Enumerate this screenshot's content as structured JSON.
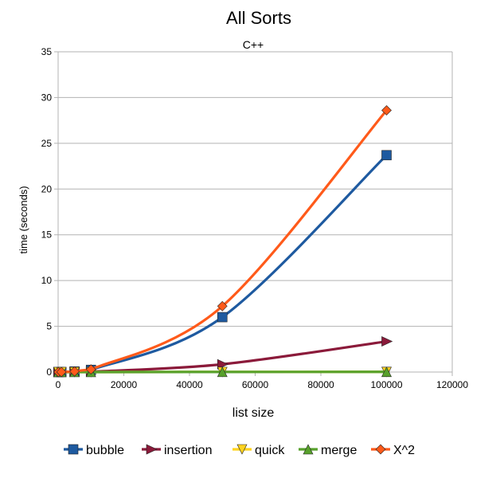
{
  "chart_data": {
    "type": "line",
    "title": "All Sorts",
    "subtitle": "C++",
    "xlabel": "list size",
    "ylabel": "time (seconds)",
    "xlim": [
      0,
      120000
    ],
    "ylim": [
      0,
      35
    ],
    "xticks": [
      0,
      20000,
      40000,
      60000,
      80000,
      100000,
      120000
    ],
    "yticks": [
      0,
      5,
      10,
      15,
      20,
      25,
      30,
      35
    ],
    "grid": "horizontal",
    "legend_position": "bottom",
    "series": [
      {
        "name": "bubble",
        "color": "#1e5aa0",
        "marker": "square",
        "x": [
          100,
          1000,
          5000,
          10000,
          50000,
          100000
        ],
        "y": [
          0.0,
          0.002,
          0.06,
          0.24,
          6.0,
          23.7
        ]
      },
      {
        "name": "insertion",
        "color": "#8b1a3a",
        "marker": "triangle-right",
        "x": [
          100,
          1000,
          5000,
          10000,
          50000,
          100000
        ],
        "y": [
          0.0,
          0.0,
          0.01,
          0.04,
          0.85,
          3.35
        ]
      },
      {
        "name": "quick",
        "color": "#ffd320",
        "marker": "triangle-down",
        "x": [
          100,
          1000,
          5000,
          10000,
          50000,
          100000
        ],
        "y": [
          0.0,
          0.0,
          0.0,
          0.0,
          0.01,
          0.02
        ]
      },
      {
        "name": "merge",
        "color": "#58a12c",
        "marker": "triangle-up",
        "x": [
          100,
          1000,
          5000,
          10000,
          50000,
          100000
        ],
        "y": [
          0.0,
          0.0,
          0.0,
          0.0,
          0.01,
          0.02
        ]
      },
      {
        "name": "X^2",
        "color": "#ff5a1a",
        "marker": "diamond",
        "x": [
          100,
          1000,
          5000,
          10000,
          50000,
          100000
        ],
        "y": [
          0.0,
          0.003,
          0.07,
          0.29,
          7.2,
          28.6
        ]
      }
    ]
  }
}
